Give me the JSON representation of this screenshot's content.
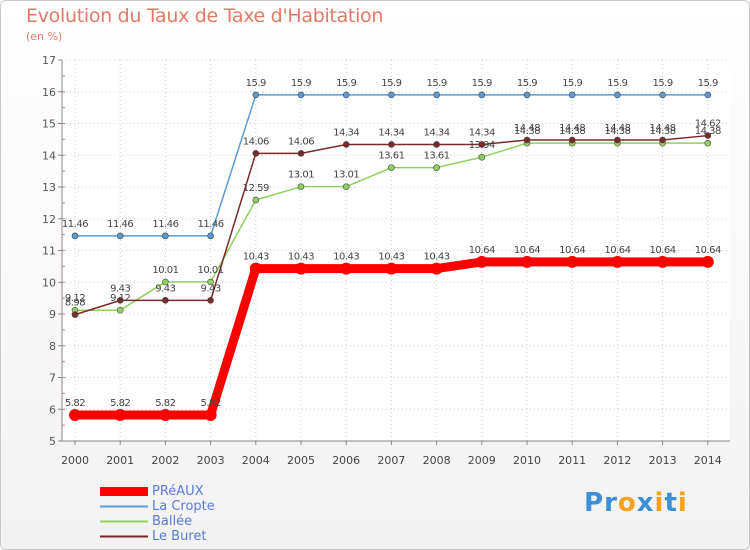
{
  "chart_data": {
    "type": "line",
    "title": "Evolution du Taux de Taxe d'Habitation",
    "ylabel": "(en %)",
    "xlabel": "",
    "ylim": [
      5,
      17
    ],
    "yticks": [
      5,
      6,
      7,
      8,
      9,
      10,
      11,
      12,
      13,
      14,
      15,
      16,
      17
    ],
    "categories": [
      "2000",
      "2001",
      "2002",
      "2003",
      "2004",
      "2005",
      "2006",
      "2007",
      "2008",
      "2009",
      "2010",
      "2011",
      "2012",
      "2013",
      "2014"
    ],
    "series": [
      {
        "name": "PRéAUX",
        "color": "#ff0000",
        "values": [
          5.82,
          5.82,
          5.82,
          5.82,
          10.43,
          10.43,
          10.43,
          10.43,
          10.43,
          10.64,
          10.64,
          10.64,
          10.64,
          10.64,
          10.64
        ],
        "labels": [
          "5.82",
          "5.82",
          "5.82",
          "5.82",
          "10.43",
          "10.43",
          "10.43",
          "10.43",
          "10.43",
          "10.64",
          "10.64",
          "10.64",
          "10.64",
          "10.64",
          "10.64"
        ]
      },
      {
        "name": "La Cropte",
        "color": "#5b9bd5",
        "values": [
          11.46,
          11.46,
          11.46,
          11.46,
          15.9,
          15.9,
          15.9,
          15.9,
          15.9,
          15.9,
          15.9,
          15.9,
          15.9,
          15.9,
          15.9
        ],
        "labels": [
          "11.46",
          "11.46",
          "11.46",
          "11.46",
          "15.9",
          "15.9",
          "15.9",
          "15.9",
          "15.9",
          "15.9",
          "15.9",
          "15.9",
          "15.9",
          "15.9",
          "15.9"
        ]
      },
      {
        "name": "Ballée",
        "color": "#90d060",
        "values": [
          9.12,
          9.12,
          10.01,
          10.01,
          12.59,
          13.01,
          13.01,
          13.61,
          13.61,
          13.94,
          14.38,
          14.38,
          14.38,
          14.38,
          14.38
        ],
        "labels": [
          "9.12",
          "9.12",
          "10.01",
          "10.01",
          "12.59",
          "13.01",
          "13.01",
          "13.61",
          "13.61",
          "13.94",
          "14.38",
          "14.38",
          "14.38",
          "14.38",
          "14.38"
        ]
      },
      {
        "name": "Le Buret",
        "color": "#7a2a2a",
        "values": [
          8.98,
          9.43,
          9.43,
          9.43,
          14.06,
          14.06,
          14.34,
          14.34,
          14.34,
          14.34,
          14.48,
          14.48,
          14.48,
          14.48,
          14.62
        ],
        "labels": [
          "8.98",
          "9.43",
          "9.43",
          "9.43",
          "14.06",
          "14.06",
          "14.34",
          "14.34",
          "14.34",
          "14.34",
          "14.48",
          "14.48",
          "14.48",
          "14.48",
          "14.62"
        ]
      }
    ]
  },
  "logo": {
    "text": "Proxiti",
    "letters": [
      "P",
      "r",
      "o",
      "x",
      "i",
      "t",
      "i"
    ],
    "colors": [
      "#3a8fd6",
      "#3a8fd6",
      "#f7a21b",
      "#3a8fd6",
      "#f7a21b",
      "#3a8fd6",
      "#f7a21b"
    ]
  }
}
